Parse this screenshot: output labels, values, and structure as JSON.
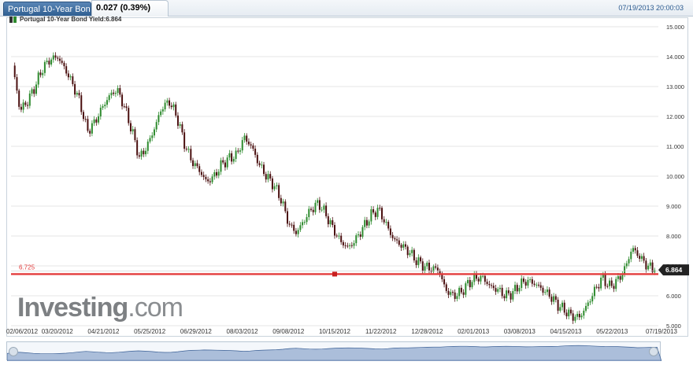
{
  "header": {
    "tab_label": "Portugal 10-Year Bon...",
    "change": "0.027 (0.39%)",
    "datetime": "07/19/2013 20:00:03"
  },
  "legend": {
    "label": "Portugal 10-Year Bond Yield:6.864"
  },
  "logo": {
    "prefix": "Investing",
    "suffix": ".com"
  },
  "colors": {
    "up": "#2e8b2e",
    "down": "#4a0f0f",
    "level": "#e43c3c",
    "grid": "#e4e4e4"
  },
  "chart_data": {
    "type": "candlestick",
    "title": "Portugal 10-Year Bond Yield:6.864",
    "ylim": [
      5.0,
      15.0
    ],
    "y_ticks": [
      "5.000",
      "6.000",
      "7.000",
      "8.000",
      "9.000",
      "10.000",
      "11.000",
      "12.000",
      "13.000",
      "14.000",
      "15.000"
    ],
    "x_ticks": [
      "02/06/2012",
      "03/20/2012",
      "04/21/2012",
      "05/25/2012",
      "06/29/2012",
      "08/03/2012",
      "09/08/2012",
      "10/15/2012",
      "11/22/2012",
      "12/28/2012",
      "02/01/2013",
      "03/08/2013",
      "04/15/2013",
      "05/22/2013",
      "07/19/2013"
    ],
    "horizontal_line": {
      "value": 6.725,
      "label": "6.725"
    },
    "last_value": "6.864",
    "close_series": [
      13.7,
      12.2,
      12.5,
      13.0,
      13.6,
      13.9,
      14.0,
      13.6,
      13.1,
      12.5,
      11.5,
      11.8,
      12.3,
      12.7,
      12.9,
      12.3,
      11.5,
      10.6,
      11.0,
      11.6,
      12.3,
      12.5,
      12.0,
      11.1,
      10.5,
      10.2,
      9.8,
      10.0,
      10.4,
      10.6,
      10.7,
      11.3,
      11.0,
      10.4,
      10.0,
      9.7,
      9.2,
      8.4,
      8.1,
      8.5,
      8.9,
      9.1,
      8.7,
      8.2,
      7.8,
      7.6,
      7.9,
      8.3,
      8.7,
      8.9,
      8.4,
      7.9,
      7.7,
      7.5,
      7.2,
      7.0,
      6.9,
      6.9,
      6.2,
      6.0,
      6.1,
      6.4,
      6.6,
      6.6,
      6.3,
      6.2,
      6.0,
      6.1,
      6.4,
      6.5,
      6.4,
      6.2,
      6.0,
      5.7,
      5.5,
      5.3,
      5.3,
      5.7,
      6.2,
      6.6,
      6.3,
      6.5,
      6.9,
      7.6,
      7.3,
      7.0,
      6.86
    ]
  }
}
